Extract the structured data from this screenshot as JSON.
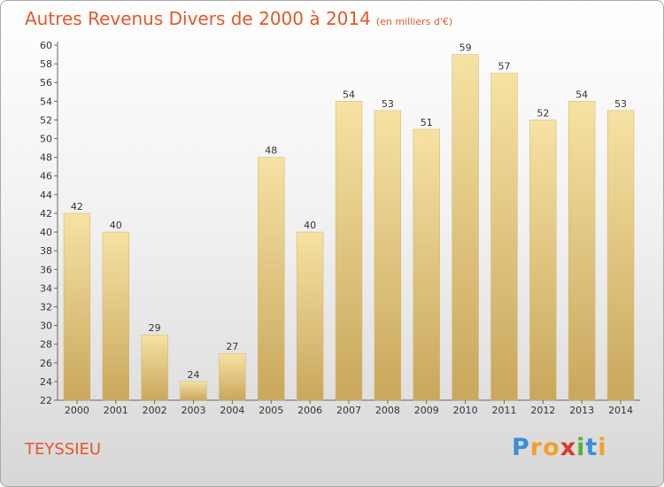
{
  "chart_data": {
    "type": "bar",
    "title": "Autres Revenus Divers de 2000 à 2014",
    "unit_note": "(en milliers d'€)",
    "categories": [
      "2000",
      "2001",
      "2002",
      "2003",
      "2004",
      "2005",
      "2006",
      "2007",
      "2008",
      "2009",
      "2010",
      "2011",
      "2012",
      "2013",
      "2014"
    ],
    "values": [
      42,
      40,
      29,
      24,
      27,
      48,
      40,
      54,
      53,
      51,
      59,
      57,
      52,
      54,
      53
    ],
    "ylim": [
      22,
      60
    ],
    "ytick_step": 2,
    "grid": false,
    "bar_color": "#e8c97e",
    "bar_color_light": "#f6e2a3",
    "bar_color_dark": "#c9a75c"
  },
  "footer": {
    "city": "TEYSSIEU",
    "brand_letters": [
      "P",
      "r",
      "o",
      "x",
      "i",
      "t",
      "i"
    ],
    "brand_colors": [
      "#3a8fd6",
      "#f0a22a",
      "#f0a22a",
      "#d93a2b",
      "#58b036",
      "#3a8fd6",
      "#f0a22a"
    ]
  },
  "colors": {
    "accent": "#e4582a"
  }
}
